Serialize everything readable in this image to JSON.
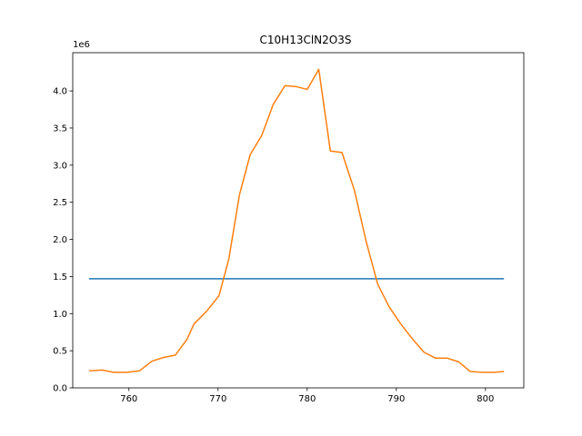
{
  "chart_data": {
    "type": "line",
    "title": "C10H13ClN2O3S",
    "xlabel": "",
    "ylabel": "",
    "y_offset_label": "1e6",
    "xlim": [
      753.7,
      804.3
    ],
    "ylim": [
      0,
      4.515
    ],
    "x_ticks": [
      760,
      770,
      780,
      790,
      800
    ],
    "x_tick_labels": [
      "760",
      "770",
      "780",
      "790",
      "800"
    ],
    "y_ticks": [
      0,
      0.5,
      1.0,
      1.5,
      2.0,
      2.5,
      3.0,
      3.5,
      4.0
    ],
    "y_tick_labels": [
      "0.0",
      "0.5",
      "1.0",
      "1.5",
      "2.0",
      "2.5",
      "3.0",
      "3.5",
      "4.0"
    ],
    "grid": false,
    "series": [
      {
        "color": "#1f77b4",
        "x": [
          755.6,
          802.0
        ],
        "y": [
          1.47,
          1.47
        ]
      },
      {
        "color": "#ff7f0e",
        "x": [
          755.6,
          757.0,
          758.3,
          759.8,
          761.2,
          762.6,
          763.9,
          765.2,
          766.5,
          767.3,
          768.7,
          770.1,
          771.2,
          772.4,
          773.6,
          774.9,
          776.2,
          777.5,
          778.7,
          780.0,
          781.3,
          782.6,
          783.9,
          785.3,
          786.6,
          787.9,
          789.2,
          790.5,
          791.8,
          793.1,
          794.4,
          795.7,
          797.0,
          798.3,
          799.6,
          801.0,
          802.0
        ],
        "y": [
          0.23,
          0.24,
          0.21,
          0.21,
          0.23,
          0.36,
          0.41,
          0.44,
          0.65,
          0.86,
          1.03,
          1.24,
          1.73,
          2.6,
          3.14,
          3.4,
          3.82,
          4.07,
          4.06,
          4.02,
          4.29,
          3.19,
          3.17,
          2.66,
          1.98,
          1.4,
          1.09,
          0.86,
          0.66,
          0.48,
          0.4,
          0.4,
          0.35,
          0.22,
          0.21,
          0.21,
          0.22
        ]
      }
    ]
  }
}
